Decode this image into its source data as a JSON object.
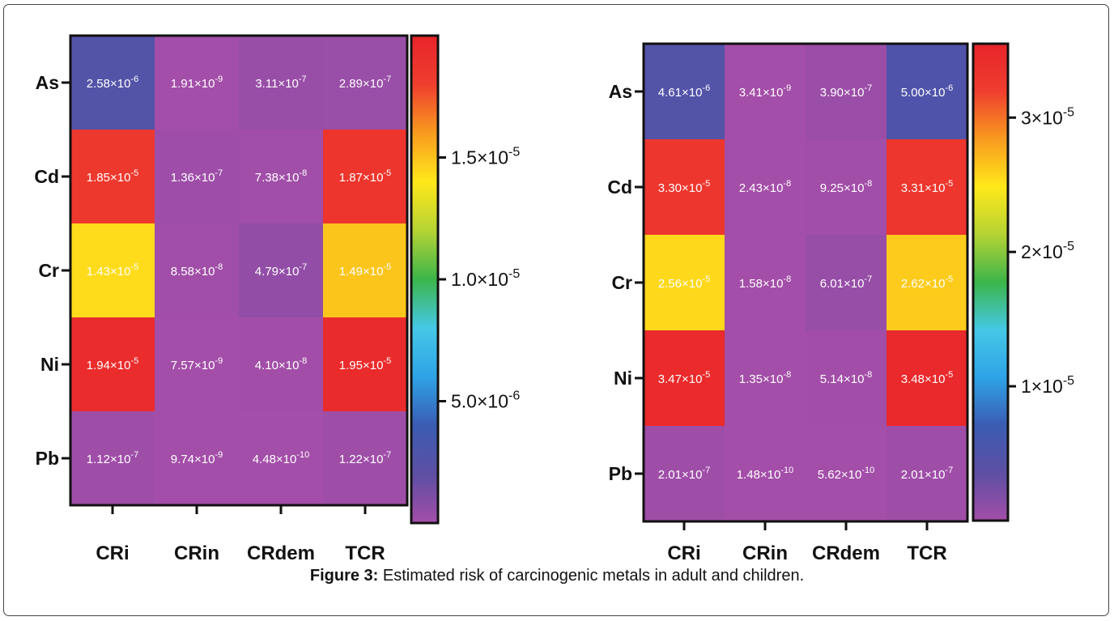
{
  "caption": {
    "label": "Figure 3:",
    "text": "Estimated risk of carcinogenic metals in adult and children."
  },
  "colormap": [
    "#a34ea8",
    "#5d4fa3",
    "#3b5cb3",
    "#2ea3e6",
    "#45c8e6",
    "#3cb54a",
    "#b5d334",
    "#ffe81a",
    "#f89b1f",
    "#ef3e2f",
    "#e8242a"
  ],
  "chart_data": [
    {
      "type": "heatmap",
      "rows": [
        "As",
        "Cd",
        "Cr",
        "Ni",
        "Pb"
      ],
      "columns": [
        "CRi",
        "CRin",
        "CRdem",
        "TCR"
      ],
      "values": [
        [
          2.58e-06,
          1.91e-09,
          3.11e-07,
          2.89e-07
        ],
        [
          1.85e-05,
          1.36e-07,
          7.38e-08,
          1.87e-05
        ],
        [
          1.43e-05,
          8.58e-08,
          4.79e-07,
          1.49e-05
        ],
        [
          1.94e-05,
          7.57e-09,
          4.1e-08,
          1.95e-05
        ],
        [
          1.12e-07,
          9.74e-09,
          4.48e-10,
          1.22e-07
        ]
      ],
      "cell_labels": [
        [
          [
            "2.58",
            "-6"
          ],
          [
            "1.91",
            "-9"
          ],
          [
            "3.11",
            "-7"
          ],
          [
            "2.89",
            "-7"
          ]
        ],
        [
          [
            "1.85",
            "-5"
          ],
          [
            "1.36",
            "-7"
          ],
          [
            "7.38",
            "-8"
          ],
          [
            "1.87",
            "-5"
          ]
        ],
        [
          [
            "1.43",
            "-5"
          ],
          [
            "8.58",
            "-8"
          ],
          [
            "4.79",
            "-7"
          ],
          [
            "1.49",
            "-5"
          ]
        ],
        [
          [
            "1.94",
            "-5"
          ],
          [
            "7.57",
            "-9"
          ],
          [
            "4.10",
            "-8"
          ],
          [
            "1.95",
            "-5"
          ]
        ],
        [
          [
            "1.12",
            "-7"
          ],
          [
            "9.74",
            "-9"
          ],
          [
            "4.48",
            "-10"
          ],
          [
            "1.22",
            "-7"
          ]
        ]
      ],
      "colorbar": {
        "range": [
          0,
          2e-05
        ],
        "ticks": [
          {
            "value": 5e-06,
            "mantissa": "5.0",
            "exponent": "-6"
          },
          {
            "value": 1e-05,
            "mantissa": "1.0",
            "exponent": "-5"
          },
          {
            "value": 1.5e-05,
            "mantissa": "1.5",
            "exponent": "-5"
          }
        ]
      }
    },
    {
      "type": "heatmap",
      "rows": [
        "As",
        "Cd",
        "Cr",
        "Ni",
        "Pb"
      ],
      "columns": [
        "CRi",
        "CRin",
        "CRdem",
        "TCR"
      ],
      "values": [
        [
          4.61e-06,
          3.41e-09,
          3.9e-07,
          5e-06
        ],
        [
          3.3e-05,
          2.43e-08,
          9.25e-08,
          3.31e-05
        ],
        [
          2.56e-05,
          1.58e-08,
          6.01e-07,
          2.62e-05
        ],
        [
          3.47e-05,
          1.35e-08,
          5.14e-08,
          3.48e-05
        ],
        [
          2.01e-07,
          1.48e-10,
          5.62e-10,
          2.01e-07
        ]
      ],
      "cell_labels": [
        [
          [
            "4.61",
            "-6"
          ],
          [
            "3.41",
            "-9"
          ],
          [
            "3.90",
            "-7"
          ],
          [
            "5.00",
            "-6"
          ]
        ],
        [
          [
            "3.30",
            "-5"
          ],
          [
            "2.43",
            "-8"
          ],
          [
            "9.25",
            "-8"
          ],
          [
            "3.31",
            "-5"
          ]
        ],
        [
          [
            "2.56",
            "-5"
          ],
          [
            "1.58",
            "-8"
          ],
          [
            "6.01",
            "-7"
          ],
          [
            "2.62",
            "-5"
          ]
        ],
        [
          [
            "3.47",
            "-5"
          ],
          [
            "1.35",
            "-8"
          ],
          [
            "5.14",
            "-8"
          ],
          [
            "3.48",
            "-5"
          ]
        ],
        [
          [
            "2.01",
            "-7"
          ],
          [
            "1.48",
            "-10"
          ],
          [
            "5.62",
            "-10"
          ],
          [
            "2.01",
            "-7"
          ]
        ]
      ],
      "colorbar": {
        "range": [
          0,
          3.55e-05
        ],
        "ticks": [
          {
            "value": 1e-05,
            "mantissa": "1",
            "exponent": "-5"
          },
          {
            "value": 2e-05,
            "mantissa": "2",
            "exponent": "-5"
          },
          {
            "value": 3e-05,
            "mantissa": "3",
            "exponent": "-5"
          }
        ]
      }
    }
  ]
}
